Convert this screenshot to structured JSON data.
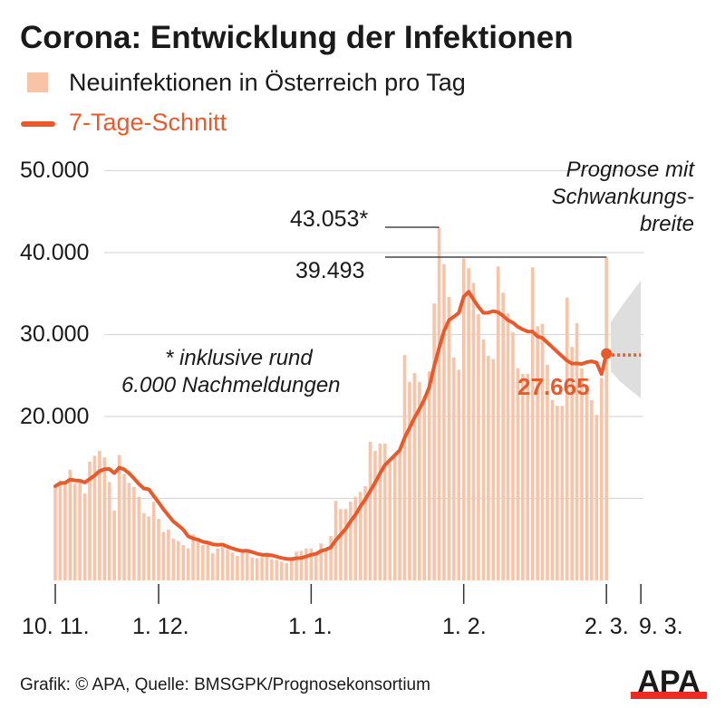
{
  "title": "Corona: Entwicklung der Infektionen",
  "legend": {
    "bars": "Neuinfektionen in Österreich pro Tag",
    "line": "7-Tage-Schnitt"
  },
  "footer": "Grafik: © APA, Quelle: BMSGPK/Prognosekonsortium",
  "logo": "APA",
  "colors": {
    "bars": "#f9c3a8",
    "line": "#e85a2c",
    "band": "#dedede",
    "logo_red": "#ee2a24"
  },
  "chart_data": {
    "type": "bar",
    "x_start": "10.11.",
    "x_end": "9.3.",
    "xticks": [
      "10. 11.",
      "1. 12.",
      "1. 1.",
      "1. 2.",
      "2. 3.",
      "9. 3."
    ],
    "ylim": [
      0,
      50000
    ],
    "yticks": [
      "50.000",
      "40.000",
      "30.000",
      "20.000",
      ""
    ],
    "grid": true,
    "legend": "top-left",
    "series": [
      {
        "name": "Neuinfektionen in Österreich pro Tag",
        "type": "bar",
        "values_thousands": [
          11.5,
          12.2,
          12.0,
          13.5,
          11.8,
          12.0,
          10.6,
          14.5,
          15.2,
          15.8,
          15.0,
          12.0,
          8.5,
          15.3,
          13.0,
          11.9,
          11.4,
          10.2,
          8.2,
          7.8,
          9.6,
          7.5,
          5.9,
          6.2,
          5.1,
          4.8,
          4.3,
          3.9,
          5.6,
          4.9,
          4.3,
          4.5,
          3.3,
          3.9,
          4.1,
          3.8,
          3.4,
          3.0,
          3.6,
          3.5,
          2.8,
          2.7,
          2.8,
          3.4,
          2.6,
          2.5,
          2.3,
          2.1,
          2.5,
          3.5,
          3.6,
          3.9,
          3.9,
          3.2,
          4.5,
          3.7,
          5.4,
          9.7,
          8.7,
          8.7,
          9.6,
          10.2,
          10.8,
          11.5,
          16.9,
          15.8,
          16.7,
          16.7,
          14.3,
          15.0,
          15.9,
          27.5,
          24.2,
          25.3,
          24.2,
          22.5,
          25.5,
          33.8,
          43.053,
          38.6,
          34.6,
          27.2,
          25.7,
          39.3,
          38.1,
          36.3,
          32.5,
          29.4,
          27.4,
          27.0,
          38.3,
          35.1,
          32.6,
          30.3,
          25.9,
          25.2,
          25.2,
          38.2,
          31.0,
          31.3,
          26.3,
          22.0,
          21.3,
          21.3,
          34.5,
          28.5,
          31.4,
          25.9,
          23.5,
          22.0,
          20.2,
          24.7,
          39.493
        ]
      },
      {
        "name": "7-Tage-Schnitt",
        "type": "line",
        "last_value": 27665
      }
    ],
    "forecast": {
      "label": "Prognose mit Schwankungsbreite",
      "label_lines": [
        "Prognose mit",
        "Schwankungs-",
        "breite"
      ],
      "value": 27500,
      "range_start": [
        25500,
        31500
      ],
      "range_end": [
        22200,
        36600
      ]
    },
    "annotations": {
      "peak": "43.053*",
      "last_bar": "39.493",
      "last_avg": "27.665",
      "footnote_lines": [
        "* inklusive rund",
        "6.000 Nachmeldungen"
      ]
    }
  }
}
